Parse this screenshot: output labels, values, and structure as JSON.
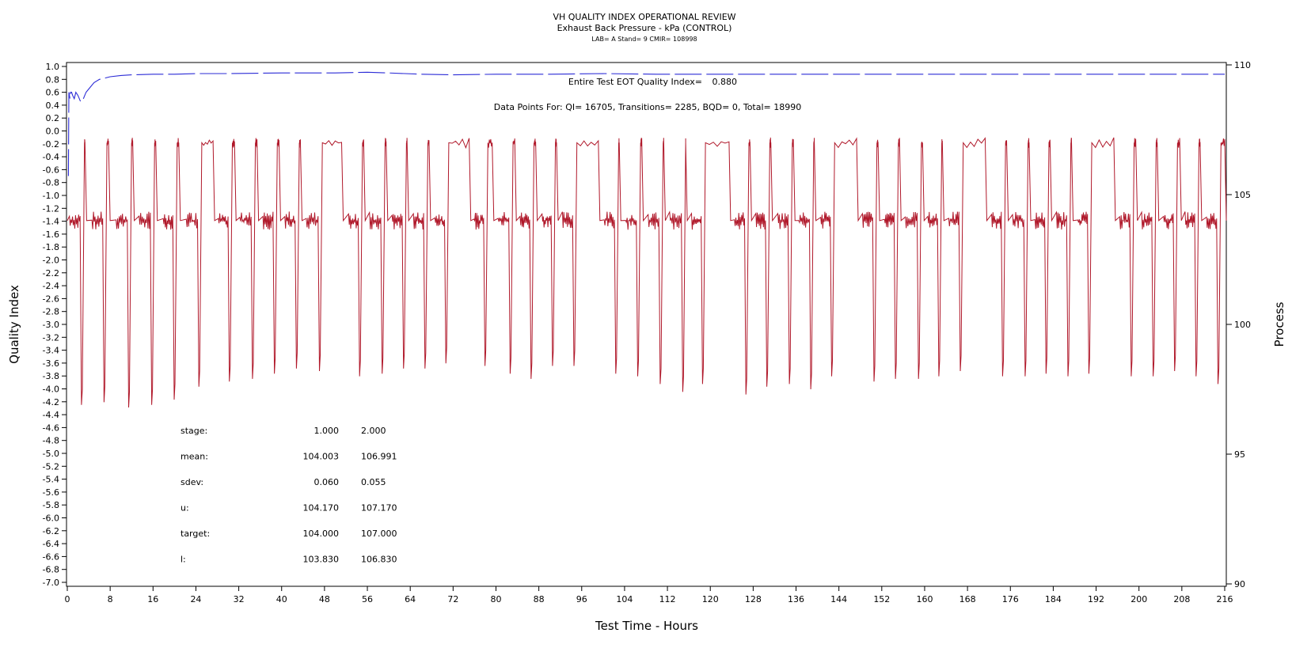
{
  "chart_data": {
    "type": "line",
    "title": "VH QUALITY INDEX OPERATIONAL REVIEW",
    "subtitle": "Exhaust Back Pressure - kPa (CONTROL)",
    "run_info": "LAB= A Stand= 9 CMIR= 108998",
    "xlabel": "Test Time - Hours",
    "ylabel": "Quality Index",
    "y2label": "Process",
    "xlim": [
      0,
      216
    ],
    "ylim": [
      -7.0,
      1.0
    ],
    "y2lim": [
      90,
      110
    ],
    "x_ticks": [
      "0",
      "8",
      "16",
      "24",
      "32",
      "40",
      "48",
      "56",
      "64",
      "72",
      "80",
      "88",
      "96",
      "104",
      "112",
      "120",
      "128",
      "136",
      "144",
      "152",
      "160",
      "168",
      "176",
      "184",
      "192",
      "200",
      "208",
      "216"
    ],
    "y_ticks": [
      "1.0",
      "0.8",
      "0.6",
      "0.4",
      "0.2",
      "0.0",
      "-0.2",
      "-0.4",
      "-0.6",
      "-0.8",
      "-1.0",
      "-1.2",
      "-1.4",
      "-1.6",
      "-1.8",
      "-2.0",
      "-2.2",
      "-2.4",
      "-2.6",
      "-2.8",
      "-3.0",
      "-3.2",
      "-3.4",
      "-3.6",
      "-3.8",
      "-4.0",
      "-4.2",
      "-4.4",
      "-4.6",
      "-4.8",
      "-5.0",
      "-5.2",
      "-5.4",
      "-5.6",
      "-5.8",
      "-6.0",
      "-6.2",
      "-6.4",
      "-6.6",
      "-6.8",
      "-7.0"
    ],
    "y2_ticks": [
      "110",
      "105",
      "100",
      "95",
      "90"
    ],
    "colors": {
      "quality_index": "#2b2bd6",
      "process": "#b0182a"
    },
    "annotations": {
      "eot_label": "Entire Test EOT Quality Index=",
      "eot_value": "0.880",
      "data_points": "Data Points For: QI= 16705, Transitions= 2285, BQD= 0, Total= 18990"
    },
    "stats_table": [
      {
        "label": "stage:",
        "v1": "1.000",
        "v2": "2.000"
      },
      {
        "label": "mean:",
        "v1": "104.003",
        "v2": "106.991"
      },
      {
        "label": "sdev:",
        "v1": "0.060",
        "v2": "0.055"
      },
      {
        "label": "u:",
        "v1": "104.170",
        "v2": "107.170"
      },
      {
        "label": "target:",
        "v1": "104.000",
        "v2": "107.000"
      },
      {
        "label": "l:",
        "v1": "103.830",
        "v2": "106.830"
      }
    ],
    "series": [
      {
        "axis": "left",
        "x": [
          0.2,
          0.3,
          0.4,
          0.5,
          0.6,
          0.8,
          1.0,
          1.3,
          1.6,
          2.0,
          2.5,
          3.0,
          3.5,
          4.0,
          5.0,
          6.0,
          7.0,
          8.0,
          10.0,
          12.0,
          16.0,
          20.0,
          24.0,
          30.0,
          40.0,
          50.0,
          56.0,
          60.0,
          66.0,
          72.0,
          80.0,
          90.0,
          100.0,
          110.0,
          120.0,
          130.0,
          140.0,
          150.0,
          160.0,
          168.0,
          176.0,
          184.0,
          192.0,
          200.0,
          208.0,
          216.0
        ],
        "y": [
          -0.7,
          0.6,
          0.55,
          0.5,
          0.6,
          0.6,
          0.55,
          0.5,
          0.6,
          0.55,
          0.45,
          0.5,
          0.6,
          0.65,
          0.75,
          0.8,
          0.82,
          0.84,
          0.86,
          0.87,
          0.88,
          0.88,
          0.89,
          0.89,
          0.9,
          0.9,
          0.91,
          0.9,
          0.88,
          0.87,
          0.88,
          0.88,
          0.89,
          0.88,
          0.88,
          0.88,
          0.88,
          0.88,
          0.88,
          0.88,
          0.88,
          0.88,
          0.88,
          0.88,
          0.88,
          0.88
        ]
      },
      {
        "axis": "right",
        "cycles": [
          {
            "start": 0.4,
            "low_end": 2.4,
            "high_end": 3.3,
            "min": 96.9
          },
          {
            "start": 4.6,
            "low_end": 6.6,
            "high_end": 7.7,
            "min": 97.0
          },
          {
            "start": 9.1,
            "low_end": 11.2,
            "high_end": 12.2,
            "min": 96.8
          },
          {
            "start": 13.4,
            "low_end": 15.5,
            "high_end": 16.5,
            "min": 96.9
          },
          {
            "start": 17.9,
            "low_end": 19.7,
            "high_end": 20.8,
            "min": 97.1
          },
          {
            "start": 22.2,
            "low_end": 24.3,
            "high_end": 27.2,
            "min": 97.6
          },
          {
            "start": 28.2,
            "low_end": 30.0,
            "high_end": 31.2,
            "min": 97.8
          },
          {
            "start": 32.2,
            "low_end": 34.3,
            "high_end": 35.4,
            "min": 97.9
          },
          {
            "start": 36.5,
            "low_end": 38.4,
            "high_end": 39.5,
            "min": 98.1
          },
          {
            "start": 40.6,
            "low_end": 42.5,
            "high_end": 43.5,
            "min": 98.3
          },
          {
            "start": 44.6,
            "low_end": 46.8,
            "high_end": 51.2,
            "min": 98.2
          },
          {
            "start": 52.5,
            "low_end": 54.3,
            "high_end": 55.3,
            "min": 98.0
          },
          {
            "start": 56.4,
            "low_end": 58.5,
            "high_end": 59.5,
            "min": 98.1
          },
          {
            "start": 60.6,
            "low_end": 62.5,
            "high_end": 63.4,
            "min": 98.3
          },
          {
            "start": 64.6,
            "low_end": 66.5,
            "high_end": 67.5,
            "min": 98.3
          },
          {
            "start": 68.6,
            "low_end": 70.4,
            "high_end": 75.0,
            "min": 98.5
          },
          {
            "start": 75.9,
            "low_end": 77.7,
            "high_end": 79.3,
            "min": 98.4
          },
          {
            "start": 80.4,
            "low_end": 82.4,
            "high_end": 83.5,
            "min": 98.1
          },
          {
            "start": 84.5,
            "low_end": 86.3,
            "high_end": 87.4,
            "min": 97.9
          },
          {
            "start": 88.6,
            "low_end": 90.3,
            "high_end": 91.3,
            "min": 98.4
          },
          {
            "start": 92.4,
            "low_end": 94.3,
            "high_end": 99.1,
            "min": 98.4
          },
          {
            "start": 100.2,
            "low_end": 102.1,
            "high_end": 103.0,
            "min": 98.1
          },
          {
            "start": 104.2,
            "low_end": 106.2,
            "high_end": 107.2,
            "min": 98.0
          },
          {
            "start": 108.4,
            "low_end": 110.4,
            "high_end": 111.3,
            "min": 97.7
          },
          {
            "start": 112.4,
            "low_end": 114.6,
            "high_end": 115.4,
            "min": 97.4
          },
          {
            "start": 116.5,
            "low_end": 118.3,
            "high_end": 123.5,
            "min": 97.7
          },
          {
            "start": 124.5,
            "low_end": 126.4,
            "high_end": 127.4,
            "min": 97.3
          },
          {
            "start": 128.5,
            "low_end": 130.3,
            "high_end": 131.3,
            "min": 97.6
          },
          {
            "start": 132.6,
            "low_end": 134.5,
            "high_end": 135.5,
            "min": 97.7
          },
          {
            "start": 136.5,
            "low_end": 138.5,
            "high_end": 139.4,
            "min": 97.5
          },
          {
            "start": 140.6,
            "low_end": 142.4,
            "high_end": 147.3,
            "min": 98.0
          },
          {
            "start": 148.4,
            "low_end": 150.3,
            "high_end": 151.3,
            "min": 97.8
          },
          {
            "start": 152.5,
            "low_end": 154.3,
            "high_end": 155.3,
            "min": 97.9
          },
          {
            "start": 156.4,
            "low_end": 158.6,
            "high_end": 159.6,
            "min": 97.9
          },
          {
            "start": 160.6,
            "low_end": 162.4,
            "high_end": 163.3,
            "min": 98.0
          },
          {
            "start": 164.5,
            "low_end": 166.4,
            "high_end": 171.3,
            "min": 98.2
          },
          {
            "start": 172.5,
            "low_end": 174.3,
            "high_end": 175.3,
            "min": 98.0
          },
          {
            "start": 176.4,
            "low_end": 178.5,
            "high_end": 179.5,
            "min": 98.0
          },
          {
            "start": 180.6,
            "low_end": 182.4,
            "high_end": 183.4,
            "min": 98.1
          },
          {
            "start": 184.6,
            "low_end": 186.5,
            "high_end": 187.4,
            "min": 98.0
          },
          {
            "start": 188.6,
            "low_end": 190.4,
            "high_end": 195.3,
            "min": 98.1
          },
          {
            "start": 196.4,
            "low_end": 198.3,
            "high_end": 199.4,
            "min": 98.0
          },
          {
            "start": 200.5,
            "low_end": 202.4,
            "high_end": 203.4,
            "min": 98.0
          },
          {
            "start": 204.6,
            "low_end": 206.4,
            "high_end": 207.6,
            "min": 98.2
          },
          {
            "start": 208.6,
            "low_end": 210.4,
            "high_end": 211.4,
            "min": 98.0
          },
          {
            "start": 212.6,
            "low_end": 214.5,
            "high_end": 216.0,
            "min": 97.7
          }
        ],
        "low_level": 104.0,
        "high_level": 107.0
      }
    ]
  }
}
